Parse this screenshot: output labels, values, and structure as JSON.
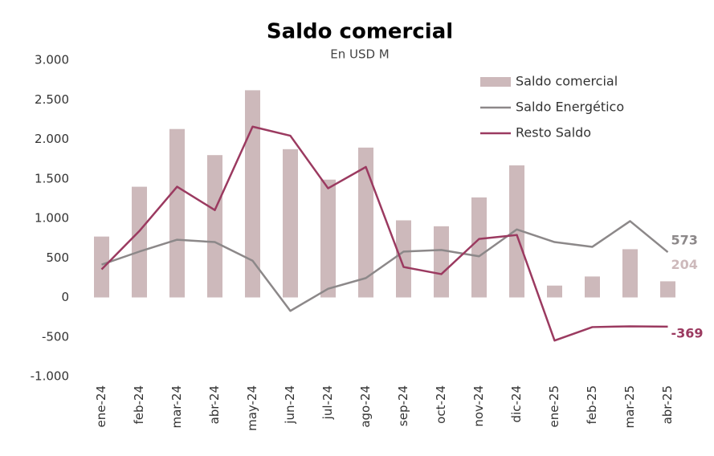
{
  "chart_data": {
    "type": "bar",
    "title": "Saldo comercial",
    "subtitle": "En USD M",
    "categories": [
      "ene-24",
      "feb-24",
      "mar-24",
      "abr-24",
      "may-24",
      "jun-24",
      "jul-24",
      "ago-24",
      "sep-24",
      "oct-24",
      "nov-24",
      "dic-24",
      "ene-25",
      "feb-25",
      "mar-25",
      "abr-25"
    ],
    "series": [
      {
        "name": "Saldo comercial",
        "type": "bar",
        "color": "#cdb9bb",
        "values": [
          770,
          1400,
          2130,
          1800,
          2620,
          1875,
          1490,
          1895,
          975,
          900,
          1265,
          1670,
          150,
          265,
          610,
          204
        ]
      },
      {
        "name": "Saldo Energético",
        "type": "line",
        "color": "#8c8889",
        "values": [
          415,
          580,
          730,
          700,
          465,
          -170,
          110,
          245,
          580,
          600,
          520,
          860,
          700,
          640,
          965,
          573
        ]
      },
      {
        "name": "Resto Saldo",
        "type": "line",
        "color": "#9b3a60",
        "values": [
          355,
          840,
          1400,
          1105,
          2160,
          2045,
          1380,
          1650,
          385,
          295,
          740,
          790,
          -545,
          -375,
          -365,
          -369
        ]
      }
    ],
    "ylim": [
      -1000,
      3000
    ],
    "yticks": [
      {
        "value": -1000,
        "label": "-1.000"
      },
      -500,
      0,
      500,
      {
        "value": 1000,
        "label": "1.000"
      },
      {
        "value": 1500,
        "label": "1.500"
      },
      {
        "value": 2000,
        "label": "2.000"
      },
      {
        "value": 2500,
        "label": "2.500"
      },
      {
        "value": 3000,
        "label": "3.000"
      }
    ],
    "legend": "upper right",
    "end_labels": true
  }
}
